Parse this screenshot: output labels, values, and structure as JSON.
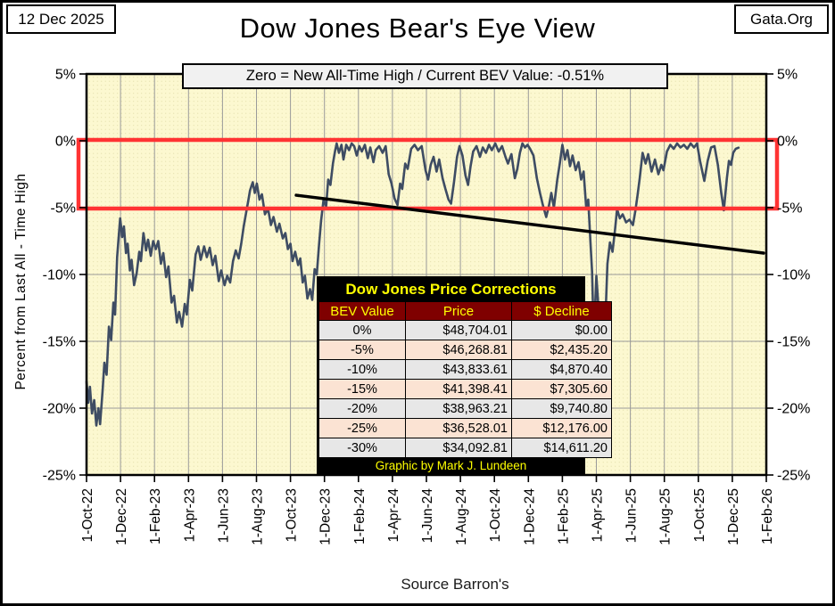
{
  "header": {
    "date_badge": "12 Dec 2025",
    "brand_badge": "Gata.Org",
    "title": "Dow Jones Bear's Eye View",
    "subtitle": "Zero = New All-Time High / Current BEV Value:  -0.51%"
  },
  "footer": {
    "source": "Source Barron's"
  },
  "table": {
    "title": "Dow Jones Price Corrections",
    "columns": [
      "BEV Value",
      "Price",
      "$ Decline"
    ],
    "rows": [
      [
        "0%",
        "$48,704.01",
        "$0.00"
      ],
      [
        "-5%",
        "$46,268.81",
        "$2,435.20"
      ],
      [
        "-10%",
        "$43,833.61",
        "$4,870.40"
      ],
      [
        "-15%",
        "$41,398.41",
        "$7,305.60"
      ],
      [
        "-20%",
        "$38,963.21",
        "$9,740.80"
      ],
      [
        "-25%",
        "$36,528.01",
        "$12,176.00"
      ],
      [
        "-30%",
        "$34,092.81",
        "$14,611.20"
      ]
    ],
    "footer": "Graphic by Mark J. Lundeen"
  },
  "colors": {
    "plot_bg": "#fcf8d0",
    "plot_dots": "#e0dba6",
    "grid": "#9a9a9a",
    "series": "#3e4c63",
    "trendline": "#000000",
    "zone_box": "#ff3333",
    "axis": "#000000",
    "table_header_bg": "#7f0000",
    "table_accent": "#ffff00",
    "row_gray": "#e7e7e7",
    "row_peach": "#fbe3d3"
  },
  "chart_data": {
    "type": "line",
    "title": "Dow Jones Bear's Eye View",
    "subtitle": "Zero = New All-Time High / Current BEV Value:  -0.51%",
    "ylabel": "Percent from Last All - Time High",
    "xlabel": "",
    "grid": true,
    "legend_position": "none",
    "current_bev_percent": -0.51,
    "all_time_high_price": "$48,704.01",
    "x_unit": "months since 1-Oct-2022",
    "x_range_months": [
      0,
      40
    ],
    "x_tick_labels": [
      "1-Oct-22",
      "1-Dec-22",
      "1-Feb-23",
      "1-Apr-23",
      "1-Jun-23",
      "1-Aug-23",
      "1-Oct-23",
      "1-Dec-23",
      "1-Feb-24",
      "1-Apr-24",
      "1-Jun-24",
      "1-Aug-24",
      "1-Oct-24",
      "1-Dec-24",
      "1-Feb-25",
      "1-Apr-25",
      "1-Jun-25",
      "1-Aug-25",
      "1-Oct-25",
      "1-Dec-25",
      "1-Feb-26"
    ],
    "ylim": [
      -25,
      5
    ],
    "y_ticks": [
      5,
      0,
      -5,
      -10,
      -15,
      -20,
      -25
    ],
    "y_tick_labels": [
      "5%",
      "0%",
      "-5%",
      "-10%",
      "-15%",
      "-20%",
      "-25%"
    ],
    "highlight_box": {
      "y_from": 0,
      "y_to": -5,
      "meaning": "0% to -5% correction zone"
    },
    "trendline": {
      "from": [
        12.34,
        -4.07
      ],
      "to": [
        39.84,
        -8.4
      ]
    },
    "series": [
      {
        "name": "Dow Jones BEV (% from last all-time high)",
        "points": [
          [
            0,
            -18.0
          ],
          [
            0.1,
            -19.6
          ],
          [
            0.2,
            -18.4
          ],
          [
            0.32,
            -20.4
          ],
          [
            0.45,
            -19.4
          ],
          [
            0.58,
            -21.3
          ],
          [
            0.7,
            -20.0
          ],
          [
            0.8,
            -21.2
          ],
          [
            0.95,
            -18.6
          ],
          [
            1.05,
            -16.6
          ],
          [
            1.18,
            -17.5
          ],
          [
            1.32,
            -13.9
          ],
          [
            1.45,
            -14.9
          ],
          [
            1.58,
            -12.1
          ],
          [
            1.68,
            -13.0
          ],
          [
            1.8,
            -8.7
          ],
          [
            1.88,
            -7.4
          ],
          [
            1.98,
            -5.8
          ],
          [
            2.1,
            -7.2
          ],
          [
            2.2,
            -6.4
          ],
          [
            2.32,
            -8.4
          ],
          [
            2.42,
            -7.7
          ],
          [
            2.55,
            -9.7
          ],
          [
            2.65,
            -8.9
          ],
          [
            2.8,
            -10.8
          ],
          [
            2.95,
            -9.9
          ],
          [
            3.1,
            -8.3
          ],
          [
            3.2,
            -9.0
          ],
          [
            3.35,
            -6.9
          ],
          [
            3.5,
            -8.2
          ],
          [
            3.62,
            -7.4
          ],
          [
            3.78,
            -8.6
          ],
          [
            3.92,
            -7.5
          ],
          [
            4.08,
            -8.1
          ],
          [
            4.22,
            -7.5
          ],
          [
            4.38,
            -9.2
          ],
          [
            4.52,
            -8.4
          ],
          [
            4.68,
            -10.2
          ],
          [
            4.82,
            -9.4
          ],
          [
            5.0,
            -12.1
          ],
          [
            5.15,
            -11.6
          ],
          [
            5.32,
            -13.6
          ],
          [
            5.45,
            -12.8
          ],
          [
            5.62,
            -13.9
          ],
          [
            5.78,
            -12.2
          ],
          [
            5.9,
            -13.0
          ],
          [
            6.08,
            -10.4
          ],
          [
            6.22,
            -11.2
          ],
          [
            6.42,
            -8.5
          ],
          [
            6.58,
            -7.9
          ],
          [
            6.72,
            -8.9
          ],
          [
            6.92,
            -7.9
          ],
          [
            7.08,
            -8.7
          ],
          [
            7.25,
            -8.0
          ],
          [
            7.42,
            -9.3
          ],
          [
            7.58,
            -8.6
          ],
          [
            7.78,
            -10.5
          ],
          [
            7.92,
            -9.7
          ],
          [
            8.12,
            -10.8
          ],
          [
            8.28,
            -10.1
          ],
          [
            8.45,
            -10.6
          ],
          [
            8.62,
            -9.0
          ],
          [
            8.78,
            -8.2
          ],
          [
            8.95,
            -8.8
          ],
          [
            9.1,
            -7.7
          ],
          [
            9.25,
            -6.4
          ],
          [
            9.4,
            -5.3
          ],
          [
            9.5,
            -4.6
          ],
          [
            9.62,
            -3.7
          ],
          [
            9.78,
            -3.1
          ],
          [
            9.9,
            -3.9
          ],
          [
            10.02,
            -3.2
          ],
          [
            10.18,
            -4.4
          ],
          [
            10.32,
            -4.0
          ],
          [
            10.5,
            -5.5
          ],
          [
            10.68,
            -5.1
          ],
          [
            10.85,
            -6.3
          ],
          [
            11.0,
            -5.7
          ],
          [
            11.2,
            -6.8
          ],
          [
            11.35,
            -6.2
          ],
          [
            11.55,
            -7.3
          ],
          [
            11.7,
            -6.9
          ],
          [
            11.85,
            -8.1
          ],
          [
            12.0,
            -7.7
          ],
          [
            12.12,
            -9.0
          ],
          [
            12.28,
            -8.3
          ],
          [
            12.45,
            -9.3
          ],
          [
            12.58,
            -8.8
          ],
          [
            12.72,
            -10.6
          ],
          [
            12.85,
            -10.1
          ],
          [
            13.0,
            -11.8
          ],
          [
            13.15,
            -11.1
          ],
          [
            13.28,
            -11.9
          ],
          [
            13.42,
            -9.6
          ],
          [
            13.55,
            -10.0
          ],
          [
            13.68,
            -7.8
          ],
          [
            13.8,
            -6.0
          ],
          [
            13.95,
            -4.4
          ],
          [
            14.1,
            -4.9
          ],
          [
            14.22,
            -2.9
          ],
          [
            14.35,
            -3.3
          ],
          [
            14.5,
            -1.7
          ],
          [
            14.62,
            -0.8
          ],
          [
            14.72,
            -0.2
          ],
          [
            14.85,
            -0.9
          ],
          [
            15.0,
            -0.3
          ],
          [
            15.12,
            -1.4
          ],
          [
            15.28,
            -0.3
          ],
          [
            15.45,
            -0.7
          ],
          [
            15.6,
            -0.2
          ],
          [
            15.75,
            -0.4
          ],
          [
            15.9,
            -1.1
          ],
          [
            16.05,
            -0.4
          ],
          [
            16.2,
            -0.8
          ],
          [
            16.38,
            -0.3
          ],
          [
            16.55,
            -1.3
          ],
          [
            16.7,
            -0.5
          ],
          [
            16.88,
            -1.6
          ],
          [
            17.02,
            -0.7
          ],
          [
            17.22,
            -0.4
          ],
          [
            17.42,
            -0.9
          ],
          [
            17.6,
            -0.4
          ],
          [
            17.78,
            -2.5
          ],
          [
            17.95,
            -3.2
          ],
          [
            18.12,
            -4.3
          ],
          [
            18.3,
            -4.8
          ],
          [
            18.45,
            -3.2
          ],
          [
            18.58,
            -3.6
          ],
          [
            18.75,
            -1.7
          ],
          [
            18.9,
            -2.1
          ],
          [
            19.1,
            -0.6
          ],
          [
            19.3,
            -0.3
          ],
          [
            19.5,
            -0.7
          ],
          [
            19.72,
            -0.4
          ],
          [
            19.95,
            -2.2
          ],
          [
            20.1,
            -2.9
          ],
          [
            20.25,
            -1.8
          ],
          [
            20.42,
            -1.2
          ],
          [
            20.6,
            -2.3
          ],
          [
            20.75,
            -1.4
          ],
          [
            20.95,
            -2.8
          ],
          [
            21.12,
            -3.6
          ],
          [
            21.3,
            -4.4
          ],
          [
            21.45,
            -4.7
          ],
          [
            21.62,
            -3.1
          ],
          [
            21.8,
            -1.2
          ],
          [
            21.95,
            -0.4
          ],
          [
            22.12,
            -1.1
          ],
          [
            22.3,
            -2.6
          ],
          [
            22.45,
            -3.3
          ],
          [
            22.6,
            -1.9
          ],
          [
            22.75,
            -0.8
          ],
          [
            22.95,
            -0.4
          ],
          [
            23.15,
            -1.2
          ],
          [
            23.32,
            -0.5
          ],
          [
            23.5,
            -0.9
          ],
          [
            23.68,
            -0.3
          ],
          [
            23.85,
            -0.7
          ],
          [
            24.05,
            -0.2
          ],
          [
            24.25,
            -0.8
          ],
          [
            24.45,
            -0.4
          ],
          [
            24.65,
            -1.2
          ],
          [
            24.8,
            -1.7
          ],
          [
            25.0,
            -1.0
          ],
          [
            25.2,
            -2.8
          ],
          [
            25.35,
            -2.1
          ],
          [
            25.5,
            -0.9
          ],
          [
            25.65,
            -0.2
          ],
          [
            25.8,
            -0.5
          ],
          [
            25.95,
            -0.3
          ],
          [
            26.1,
            -0.6
          ],
          [
            26.3,
            -1.1
          ],
          [
            26.5,
            -2.8
          ],
          [
            26.68,
            -3.9
          ],
          [
            26.85,
            -4.8
          ],
          [
            27.05,
            -5.7
          ],
          [
            27.2,
            -4.9
          ],
          [
            27.35,
            -3.9
          ],
          [
            27.5,
            -5.0
          ],
          [
            27.7,
            -2.9
          ],
          [
            27.85,
            -1.7
          ],
          [
            28.0,
            -0.3
          ],
          [
            28.15,
            -1.4
          ],
          [
            28.3,
            -0.7
          ],
          [
            28.45,
            -1.9
          ],
          [
            28.6,
            -1.1
          ],
          [
            28.78,
            -2.2
          ],
          [
            28.95,
            -1.6
          ],
          [
            29.1,
            -2.9
          ],
          [
            29.25,
            -2.3
          ],
          [
            29.4,
            -5.0
          ],
          [
            29.52,
            -4.4
          ],
          [
            29.65,
            -7.5
          ],
          [
            29.75,
            -9.8
          ],
          [
            29.85,
            -14.8
          ],
          [
            30.0,
            -10.1
          ],
          [
            30.12,
            -12.4
          ],
          [
            30.25,
            -16.5
          ],
          [
            30.4,
            -13.3
          ],
          [
            30.5,
            -14.5
          ],
          [
            30.65,
            -9.2
          ],
          [
            30.8,
            -7.6
          ],
          [
            30.95,
            -8.3
          ],
          [
            31.1,
            -6.6
          ],
          [
            31.22,
            -5.1
          ],
          [
            31.38,
            -5.8
          ],
          [
            31.55,
            -5.5
          ],
          [
            31.75,
            -6.1
          ],
          [
            31.95,
            -5.9
          ],
          [
            32.15,
            -6.3
          ],
          [
            32.3,
            -5.2
          ],
          [
            32.42,
            -4.1
          ],
          [
            32.55,
            -2.8
          ],
          [
            32.72,
            -0.9
          ],
          [
            32.9,
            -1.7
          ],
          [
            33.05,
            -1.0
          ],
          [
            33.25,
            -2.3
          ],
          [
            33.45,
            -1.4
          ],
          [
            33.65,
            -2.5
          ],
          [
            33.82,
            -1.8
          ],
          [
            33.95,
            -2.2
          ],
          [
            34.15,
            -0.8
          ],
          [
            34.35,
            -0.3
          ],
          [
            34.55,
            -0.6
          ],
          [
            34.75,
            -0.2
          ],
          [
            34.95,
            -0.5
          ],
          [
            35.15,
            -0.3
          ],
          [
            35.35,
            -0.6
          ],
          [
            35.55,
            -0.2
          ],
          [
            35.75,
            -0.5
          ],
          [
            35.92,
            -0.2
          ],
          [
            36.1,
            -1.5
          ],
          [
            36.35,
            -3.0
          ],
          [
            36.55,
            -1.5
          ],
          [
            36.75,
            -0.5
          ],
          [
            36.95,
            -0.4
          ],
          [
            37.15,
            -1.8
          ],
          [
            37.35,
            -3.9
          ],
          [
            37.5,
            -5.2
          ],
          [
            37.68,
            -2.8
          ],
          [
            37.8,
            -1.5
          ],
          [
            37.92,
            -1.8
          ],
          [
            38.05,
            -0.9
          ],
          [
            38.2,
            -0.6
          ],
          [
            38.37,
            -0.51
          ]
        ]
      }
    ]
  }
}
